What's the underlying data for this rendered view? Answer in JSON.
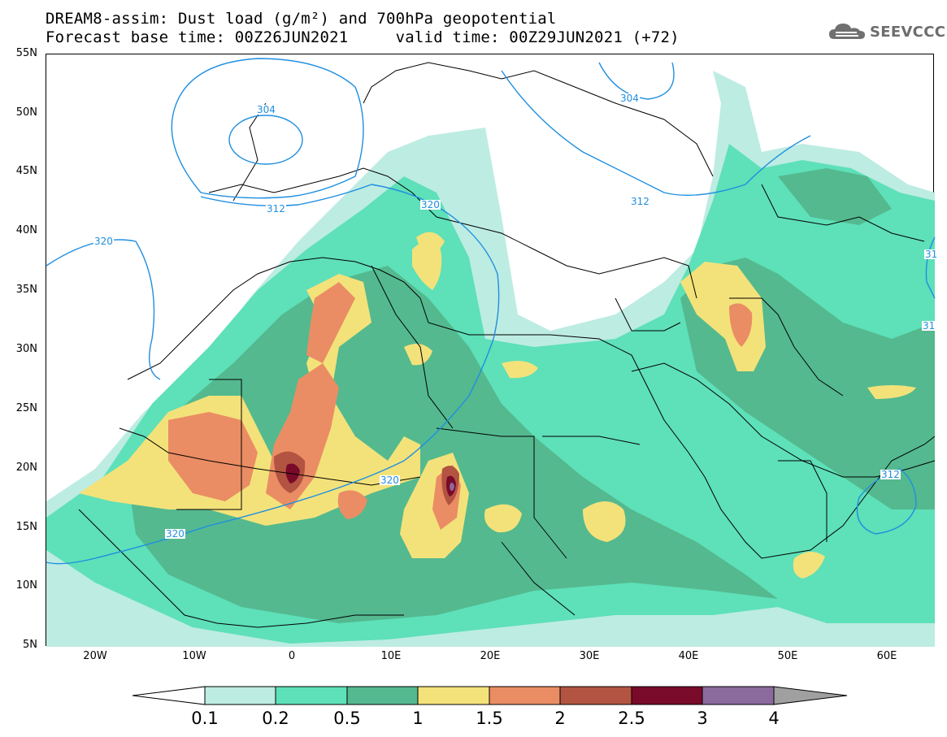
{
  "title": {
    "line1": "DREAM8-assim: Dust load (g/m²) and 700hPa geopotential",
    "line2": "Forecast base time: 00Z26JUN2021     valid time: 00Z29JUN2021 (+72)"
  },
  "logo": {
    "text": "SEEVCCC",
    "icon": "cloud-icon"
  },
  "axes": {
    "lat_labels": [
      "55N",
      "50N",
      "45N",
      "40N",
      "35N",
      "30N",
      "25N",
      "20N",
      "15N",
      "10N",
      "5N"
    ],
    "lon_labels": [
      "20W",
      "10W",
      "0",
      "10E",
      "20E",
      "30E",
      "40E",
      "50E",
      "60E"
    ]
  },
  "geopotential_labels": [
    "304",
    "304",
    "312",
    "312",
    "320",
    "320",
    "320",
    "320",
    "312",
    "31",
    "31"
  ],
  "colorbar": {
    "labels": [
      "0.1",
      "0.2",
      "0.5",
      "1",
      "1.5",
      "2",
      "2.5",
      "3",
      "4"
    ],
    "colors": [
      "#bdece2",
      "#5ee0b8",
      "#54b98f",
      "#f3e27a",
      "#ea8d64",
      "#b25441",
      "#7a0a2a",
      "#8b6a9e",
      "#a0a0a0"
    ]
  },
  "colors": {
    "dust_0_1": "#bdece2",
    "dust_0_2": "#5ee0b8",
    "dust_0_5": "#54b98f",
    "dust_1": "#f3e27a",
    "dust_1_5": "#ea8d64",
    "dust_2": "#b25441",
    "dust_2_5": "#7a0a2a",
    "dust_3": "#8b6a9e",
    "contour": "#1f8fe0"
  }
}
